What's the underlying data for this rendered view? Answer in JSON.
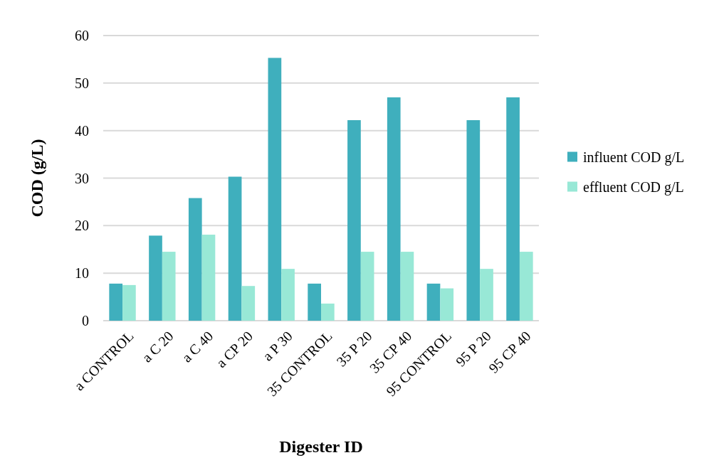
{
  "chart_data": {
    "type": "bar",
    "xlabel": "Digester ID",
    "ylabel": "COD (g/L)",
    "categories": [
      "a CONTROL",
      "a C 20",
      "a C 40",
      "a CP 20",
      "a P 30",
      "35 CONTROL",
      "35 P 20",
      "35 CP 40",
      "95 CONTROL",
      "95 P 20",
      "95 CP 40"
    ],
    "series": [
      {
        "name": "influent COD g/L",
        "color": "#3fafbd",
        "values": [
          7.8,
          17.9,
          25.8,
          30.3,
          55.3,
          7.8,
          42.2,
          47.0,
          7.8,
          42.2,
          47.0
        ]
      },
      {
        "name": "effluent COD g/L",
        "color": "#98e8d6",
        "values": [
          7.5,
          14.5,
          18.1,
          7.3,
          10.9,
          3.6,
          14.5,
          14.5,
          6.8,
          10.9,
          14.5
        ]
      }
    ],
    "ylim": [
      0,
      60
    ],
    "yticks": [
      0,
      10,
      20,
      30,
      40,
      50,
      60
    ],
    "grid": "y",
    "legend": "right"
  }
}
